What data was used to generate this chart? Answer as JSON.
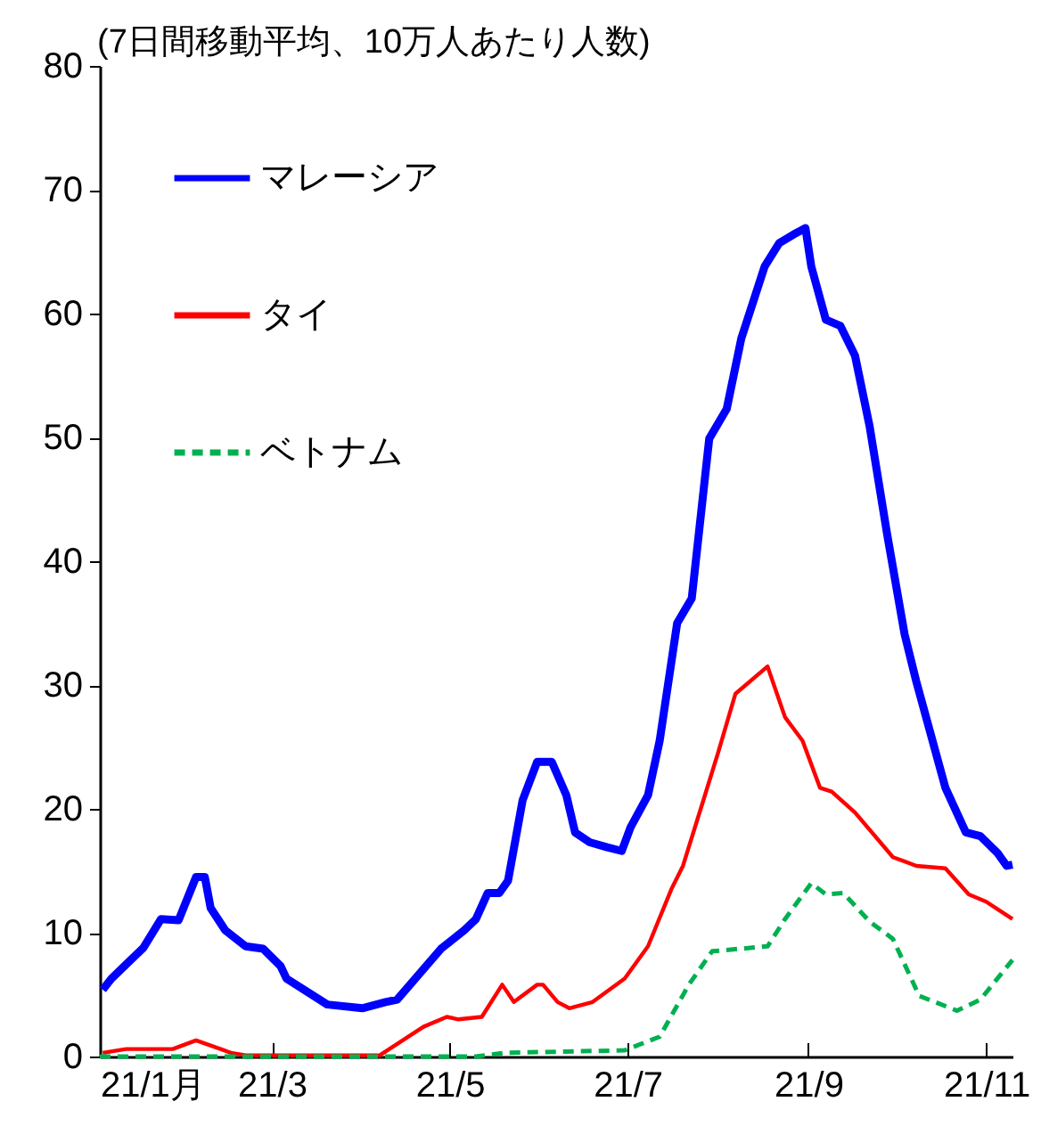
{
  "chart_data": {
    "type": "line",
    "ylabel": "(7日間移動平均、10万人あたり人数)",
    "xlim": [
      "--01-01",
      "--11-10"
    ],
    "xticks": [
      {
        "value": "--01-01",
        "label": "21/1月"
      },
      {
        "value": "--03-01",
        "label": "21/3"
      },
      {
        "value": "--05-01",
        "label": "21/5"
      },
      {
        "value": "--07-01",
        "label": "21/7"
      },
      {
        "value": "--09-01",
        "label": "21/9"
      },
      {
        "value": "--11-01",
        "label": "21/11"
      }
    ],
    "ylim": [
      0,
      80
    ],
    "yticks": [
      0,
      10,
      20,
      30,
      40,
      50,
      60,
      70,
      80
    ],
    "grid": false,
    "legend": "top left",
    "line_style": "solid",
    "series": [
      {
        "name": "マレーシア",
        "color": "#0000ff",
        "x": [
          "--01-02",
          "--01-05",
          "--01-16",
          "--01-22",
          "--01-28",
          "--02-03",
          "--02-06",
          "--02-08",
          "--02-13",
          "--02-20",
          "--02-26",
          "--03-04",
          "--03-06",
          "--03-20",
          "--04-01",
          "--04-09",
          "--04-13",
          "--04-28",
          "--05-06",
          "--05-10",
          "--05-14",
          "--05-18",
          "--05-21",
          "--05-26",
          "--05-31",
          "--06-05",
          "--06-10",
          "--06-13",
          "--06-18",
          "--06-24",
          "--06-29",
          "--07-02",
          "--07-08",
          "--07-12",
          "--07-18",
          "--07-23",
          "--07-29",
          "--08-04",
          "--08-09",
          "--08-17",
          "--08-22",
          "--08-27",
          "--08-31",
          "--09-02",
          "--09-07",
          "--09-12",
          "--09-17",
          "--09-22",
          "--09-28",
          "--10-04",
          "--10-08",
          "--10-18",
          "--10-25",
          "--10-30",
          "--11-05",
          "--11-08",
          "--11-10"
        ],
        "values": [
          5.4,
          6.3,
          8.8,
          11.1,
          11,
          14.5,
          14.5,
          12,
          10.2,
          8.9,
          8.7,
          7.3,
          6.3,
          4.2,
          3.9,
          4.4,
          4.6,
          8.7,
          10.2,
          11.1,
          13.2,
          13.2,
          14.2,
          20.7,
          23.8,
          23.8,
          21.1,
          18.1,
          17.3,
          16.9,
          16.6,
          18.5,
          21.1,
          25.5,
          35,
          37,
          49.9,
          52.3,
          58,
          63.8,
          65.7,
          66.4,
          66.9,
          63.8,
          59.5,
          59,
          56.6,
          50.9,
          42.2,
          34.1,
          30.3,
          21.7,
          18.1,
          17.8,
          16.4,
          15.4,
          15.5
        ]
      },
      {
        "name": "タイ",
        "color": "#ff0000",
        "x": [
          "--01-02",
          "--01-10",
          "--01-26",
          "--02-03",
          "--02-15",
          "--02-20",
          "--04-07",
          "--04-22",
          "--04-30",
          "--05-04",
          "--05-12",
          "--05-19",
          "--05-23",
          "--05-31",
          "--06-02",
          "--06-07",
          "--06-11",
          "--06-19",
          "--06-30",
          "--07-08",
          "--07-16",
          "--07-20",
          "--07-27",
          "--08-01",
          "--08-07",
          "--08-18",
          "--08-24",
          "--08-30",
          "--09-05",
          "--09-09",
          "--09-17",
          "--09-30",
          "--10-08",
          "--10-18",
          "--10-26",
          "--11-01",
          "--11-10"
        ],
        "values": [
          0.3,
          0.6,
          0.6,
          1.3,
          0.3,
          0.1,
          0.1,
          2.4,
          3.2,
          3,
          3.2,
          5.8,
          4.4,
          5.8,
          5.8,
          4.4,
          3.9,
          4.4,
          6.3,
          8.9,
          13.5,
          15.4,
          20.7,
          24.5,
          29.3,
          31.5,
          27.4,
          25.5,
          21.7,
          21.4,
          19.7,
          16.1,
          15.4,
          15.2,
          13.1,
          12.5,
          11.1
        ]
      },
      {
        "name": "ベトナム",
        "color": "#00b050",
        "line_style": "dashed",
        "x": [
          "--01-01",
          "--05-10",
          "--05-20",
          "--06-30",
          "--07-12",
          "--07-22",
          "--07-30",
          "--08-18",
          "--08-24",
          "--09-02",
          "--09-07",
          "--09-13",
          "--09-22",
          "--09-30",
          "--10-09",
          "--10-22",
          "--10-30",
          "--11-10"
        ],
        "values": [
          0,
          0,
          0.3,
          0.5,
          1.6,
          5.8,
          8.5,
          8.9,
          11.1,
          14,
          13.1,
          13.2,
          10.9,
          9.5,
          4.9,
          3.7,
          4.6,
          7.8
        ]
      }
    ]
  }
}
